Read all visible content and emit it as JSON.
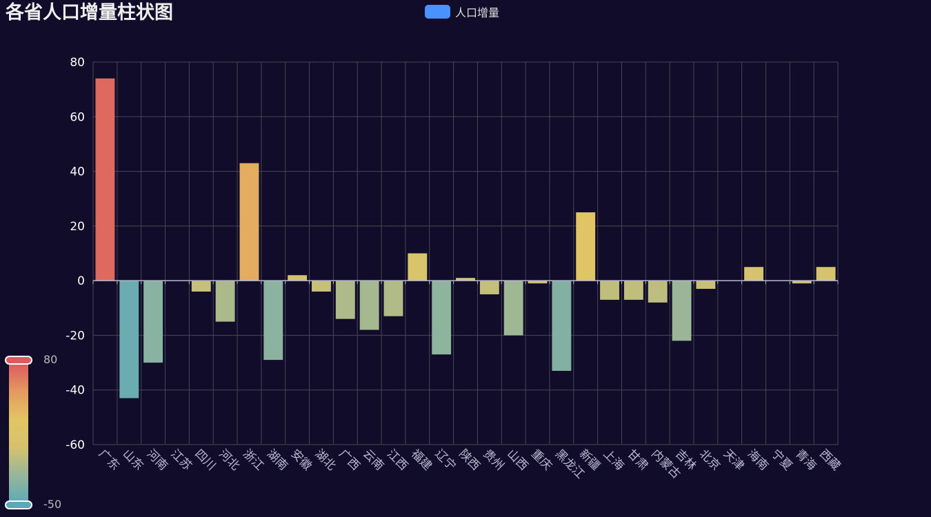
{
  "title": "各省人口增量柱状图",
  "legend": {
    "label": "人口增量",
    "color": "#4992ff"
  },
  "visual_map": {
    "max_label": "80",
    "min_label": "-50",
    "min": -50,
    "max": 80,
    "colors": [
      "#5ba9b8",
      "#96b59a",
      "#d5c26e",
      "#e3c563",
      "#e39a5f",
      "#dd5a5f"
    ]
  },
  "chart_data": {
    "type": "bar",
    "categories": [
      "广东",
      "山东",
      "河南",
      "江苏",
      "四川",
      "河北",
      "浙江",
      "湖南",
      "安徽",
      "湖北",
      "广西",
      "云南",
      "江西",
      "福建",
      "辽宁",
      "陕西",
      "贵州",
      "山西",
      "重庆",
      "黑龙江",
      "新疆",
      "上海",
      "甘肃",
      "内蒙古",
      "吉林",
      "北京",
      "天津",
      "海南",
      "宁夏",
      "青海",
      "西藏"
    ],
    "series": [
      {
        "name": "人口增量",
        "values": [
          74,
          -43,
          -30,
          0,
          -4,
          -15,
          43,
          -29,
          2,
          -4,
          -14,
          -18,
          -13,
          10,
          -27,
          1,
          -5,
          -20,
          -1,
          -33,
          25,
          -7,
          -7,
          -8,
          -22,
          -3,
          0,
          5,
          0,
          -1,
          5
        ]
      }
    ],
    "ylim": [
      -60,
      80
    ],
    "yticks": [
      80,
      60,
      40,
      20,
      0,
      -20,
      -40,
      -60
    ],
    "title": "各省人口增量柱状图",
    "xlabel": "",
    "ylabel": "",
    "grid": true,
    "legend_position": "top-center",
    "colors": {
      "grid": "#484753",
      "axis": "#b9b8ce",
      "tick_label": "#ffffff",
      "category_label": "#b9b8ce"
    }
  }
}
